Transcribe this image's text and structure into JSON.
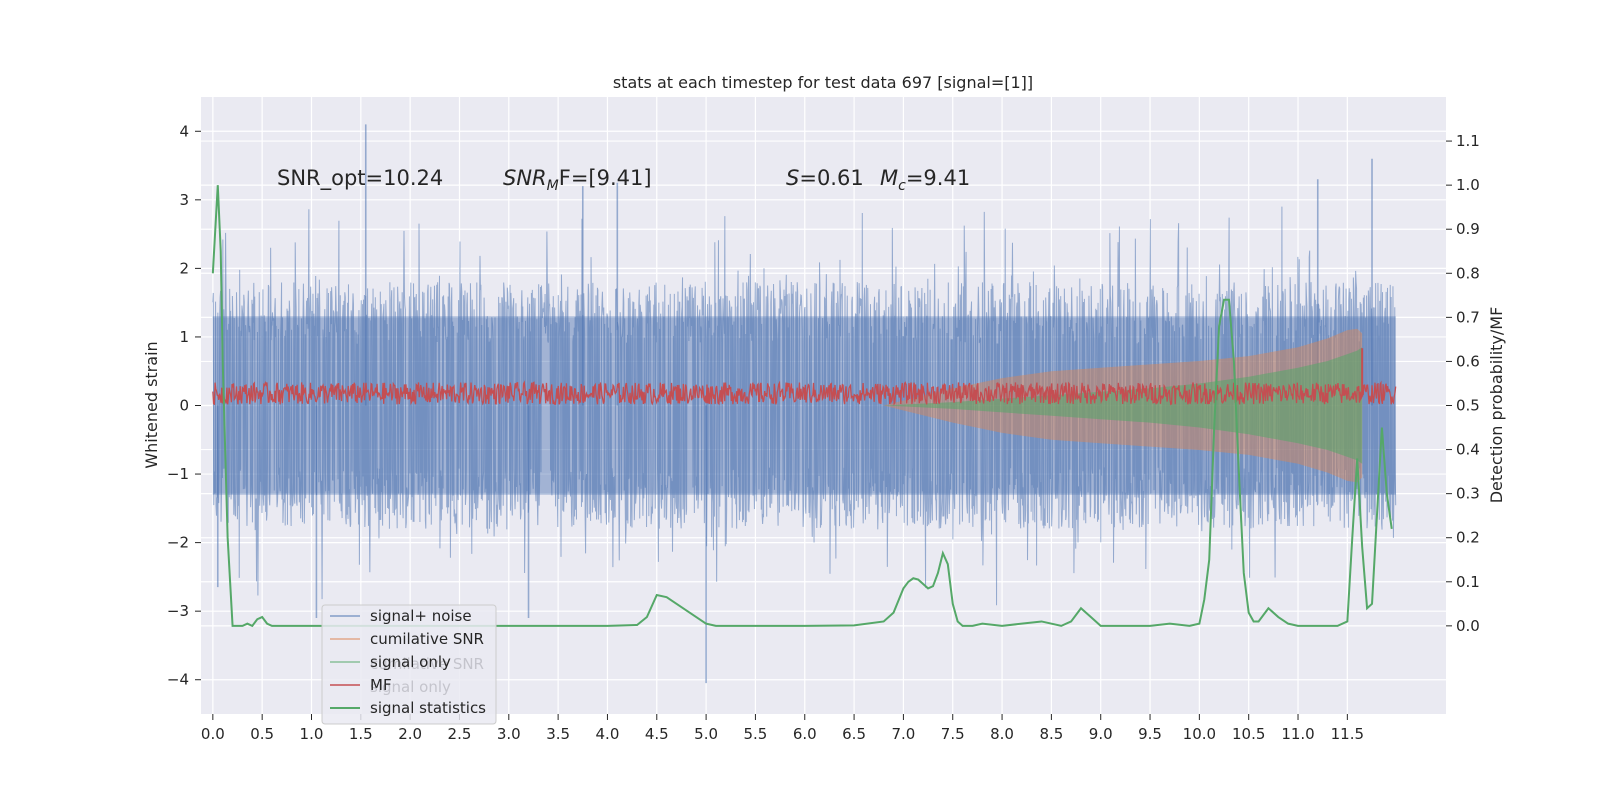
{
  "chart_data": {
    "type": "line",
    "title": "stats at each timestep for test data 697 [signal=[1]]",
    "xlabel": "",
    "ylabel": "Whitened strain",
    "ylabel_right": "Detection probability/MF",
    "xlim": [
      -0.12,
      12.5
    ],
    "ylim": [
      -4.5,
      4.5
    ],
    "ylim_right": [
      -0.2,
      1.2
    ],
    "grid": true,
    "x_ticks": [
      "0.0",
      "0.5",
      "1.0",
      "1.5",
      "2.0",
      "2.5",
      "3.0",
      "3.5",
      "4.0",
      "4.5",
      "5.0",
      "5.5",
      "6.0",
      "6.5",
      "7.0",
      "7.5",
      "8.0",
      "8.5",
      "9.0",
      "9.5",
      "10.0",
      "10.5",
      "11.0",
      "11.5"
    ],
    "y_ticks": [
      "4",
      "3",
      "2",
      "1",
      "0",
      "−1",
      "−2",
      "−3",
      "−4"
    ],
    "y_ticks_right": [
      "1.1",
      "1.0",
      "0.9",
      "0.8",
      "0.7",
      "0.6",
      "0.5",
      "0.4",
      "0.3",
      "0.2",
      "0.1",
      "0.0"
    ],
    "annotations": {
      "snr_opt": "SNR_opt=10.24",
      "snr_mf_main": "SNR",
      "snr_mf_sub": "M",
      "snr_mf_tail": "F=[9.41]",
      "s_main": "S",
      "s_tail": "=0.61",
      "mc_main": "M",
      "mc_sub": "c",
      "mc_tail": "=9.41"
    },
    "legend": {
      "placement": "lower-left",
      "entries": [
        {
          "label": "signal+ noise",
          "color": "#4c72b0"
        },
        {
          "label": "cumilative SNR",
          "color": "#dd8452"
        },
        {
          "label": "signal only",
          "color": "#55a868"
        },
        {
          "label": "MF",
          "color": "#c44e52"
        },
        {
          "label": "signal statistics",
          "color": "#55a868"
        }
      ],
      "ghost_labels": [
        "cumilative SNR",
        "signal only"
      ]
    },
    "series": [
      {
        "name": "signal+ noise",
        "axis": "left",
        "style": "noise band",
        "x_range": [
          0.0,
          11.99
        ],
        "band_core": [
          -1.3,
          1.3
        ],
        "peak_max": 4.1,
        "peak_min": -4.05,
        "spikes": [
          {
            "x": 1.55,
            "y": 4.1
          },
          {
            "x": 5.0,
            "y": -4.05
          },
          {
            "x": 11.75,
            "y": 3.6
          },
          {
            "x": 11.2,
            "y": 3.3
          },
          {
            "x": 4.1,
            "y": 3.25
          },
          {
            "x": 3.75,
            "y": 3.2
          },
          {
            "x": 3.2,
            "y": -3.1
          },
          {
            "x": 1.05,
            "y": -3.1
          },
          {
            "x": 0.05,
            "y": -2.65
          }
        ]
      },
      {
        "name": "cumilative SNR",
        "axis": "left",
        "style": "growing envelope",
        "x": [
          6.8,
          7.5,
          8.0,
          8.5,
          9.0,
          9.5,
          10.0,
          10.5,
          11.0,
          11.3,
          11.5,
          11.6,
          11.65
        ],
        "y_upper": [
          0.0,
          0.25,
          0.4,
          0.5,
          0.55,
          0.6,
          0.65,
          0.72,
          0.85,
          0.98,
          1.1,
          1.12,
          1.05
        ]
      },
      {
        "name": "signal only",
        "axis": "left",
        "style": "chirp",
        "x": [
          6.8,
          7.5,
          8.0,
          8.5,
          9.0,
          9.5,
          10.0,
          10.5,
          11.0,
          11.3,
          11.5,
          11.6,
          11.65
        ],
        "y_upper": [
          0.0,
          0.05,
          0.1,
          0.15,
          0.2,
          0.25,
          0.32,
          0.42,
          0.55,
          0.65,
          0.75,
          0.8,
          0.85
        ]
      },
      {
        "name": "MF",
        "axis": "right",
        "style": "noisy",
        "x_range": [
          0.0,
          11.99
        ],
        "baseline": 0.52,
        "amplitude": 0.025,
        "spike": {
          "x": 11.65,
          "y": 0.63
        }
      },
      {
        "name": "signal statistics",
        "axis": "right",
        "x": [
          0.0,
          0.05,
          0.08,
          0.1,
          0.15,
          0.2,
          0.25,
          0.3,
          0.35,
          0.4,
          0.45,
          0.5,
          0.55,
          0.6,
          1.0,
          2.0,
          3.0,
          4.0,
          4.3,
          4.4,
          4.5,
          4.6,
          4.7,
          4.8,
          4.9,
          5.0,
          5.1,
          5.2,
          5.5,
          6.0,
          6.5,
          6.8,
          6.9,
          7.0,
          7.05,
          7.1,
          7.15,
          7.2,
          7.25,
          7.3,
          7.35,
          7.4,
          7.45,
          7.5,
          7.55,
          7.6,
          7.65,
          7.7,
          7.8,
          8.0,
          8.2,
          8.4,
          8.6,
          8.7,
          8.8,
          8.9,
          9.0,
          9.2,
          9.5,
          9.7,
          9.9,
          10.0,
          10.05,
          10.1,
          10.15,
          10.2,
          10.25,
          10.3,
          10.35,
          10.4,
          10.45,
          10.5,
          10.55,
          10.6,
          10.7,
          10.8,
          10.9,
          11.0,
          11.2,
          11.4,
          11.5,
          11.55,
          11.6,
          11.62,
          11.65,
          11.7,
          11.75,
          11.8,
          11.85,
          11.9,
          11.95
        ],
        "y": [
          0.8,
          1.0,
          0.85,
          0.6,
          0.2,
          0.0,
          0.0,
          0.0,
          0.005,
          0.0,
          0.015,
          0.02,
          0.005,
          0.0,
          0.0,
          0.0,
          0.0,
          0.0,
          0.002,
          0.02,
          0.07,
          0.065,
          0.05,
          0.035,
          0.02,
          0.005,
          0.0,
          0.0,
          0.0,
          0.0,
          0.001,
          0.01,
          0.03,
          0.085,
          0.1,
          0.108,
          0.105,
          0.095,
          0.085,
          0.09,
          0.12,
          0.165,
          0.14,
          0.05,
          0.01,
          0.0,
          0.0,
          0.0,
          0.005,
          0.0,
          0.005,
          0.01,
          0.0,
          0.01,
          0.04,
          0.02,
          0.0,
          0.0,
          0.0,
          0.005,
          0.0,
          0.005,
          0.06,
          0.15,
          0.45,
          0.68,
          0.74,
          0.74,
          0.6,
          0.35,
          0.12,
          0.03,
          0.01,
          0.01,
          0.04,
          0.02,
          0.005,
          0.0,
          0.0,
          0.0,
          0.01,
          0.2,
          0.38,
          0.3,
          0.18,
          0.04,
          0.05,
          0.25,
          0.45,
          0.3,
          0.22
        ]
      }
    ]
  }
}
